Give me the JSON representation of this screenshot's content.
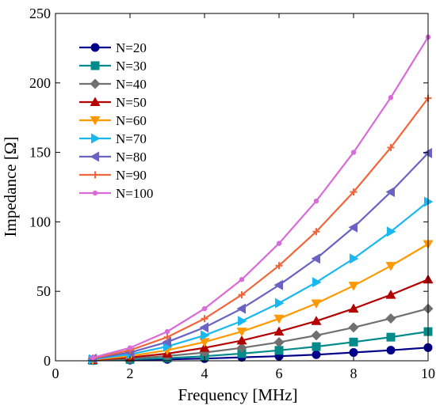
{
  "chart_data": {
    "type": "line",
    "title": "",
    "xlabel": "Frequency [MHz]",
    "ylabel": "Impedance [Ω]",
    "xlim": [
      0,
      10
    ],
    "ylim": [
      0,
      250
    ],
    "x_ticks": [
      "0",
      "2",
      "4",
      "6",
      "8",
      "10"
    ],
    "y_ticks": [
      "0",
      "50",
      "100",
      "150",
      "200",
      "250"
    ],
    "grid": false,
    "legend_position": "top-left",
    "x": [
      1,
      2,
      3,
      4,
      5,
      6,
      7,
      8,
      9,
      10
    ],
    "series": [
      {
        "name": "N=20",
        "color": "#00008b",
        "marker": "circle",
        "values": [
          0.3,
          0.5,
          1.0,
          1.6,
          2.5,
          3.3,
          4.4,
          6.0,
          7.6,
          9.5
        ]
      },
      {
        "name": "N=30",
        "color": "#008b8b",
        "marker": "square",
        "values": [
          0.3,
          1.0,
          1.9,
          3.3,
          5.2,
          7.5,
          10.2,
          13.5,
          17.0,
          21.0
        ]
      },
      {
        "name": "N=40",
        "color": "#707070",
        "marker": "diamond",
        "values": [
          0.4,
          1.6,
          3.4,
          5.9,
          9.3,
          13.3,
          18.3,
          24.0,
          30.5,
          37.5
        ]
      },
      {
        "name": "N=50",
        "color": "#b30000",
        "marker": "triangle-up",
        "values": [
          0.6,
          2.4,
          5.2,
          9.3,
          14.6,
          21.0,
          28.6,
          37.5,
          47.5,
          58.5
        ]
      },
      {
        "name": "N=60",
        "color": "#ff9900",
        "marker": "triangle-down",
        "values": [
          0.8,
          3.4,
          7.6,
          13.5,
          21.0,
          30.3,
          41.3,
          54.0,
          68.3,
          84.0
        ]
      },
      {
        "name": "N=70",
        "color": "#1ab8f0",
        "marker": "triangle-right",
        "values": [
          1.1,
          4.6,
          10.3,
          18.3,
          28.6,
          41.5,
          56.5,
          73.5,
          93.0,
          114.5
        ]
      },
      {
        "name": "N=80",
        "color": "#6b63c4",
        "marker": "triangle-left",
        "values": [
          1.5,
          6.0,
          13.5,
          24.0,
          37.5,
          54.5,
          73.5,
          96.0,
          121.5,
          149.5
        ]
      },
      {
        "name": "N=90",
        "color": "#f0663c",
        "marker": "plus",
        "values": [
          1.9,
          7.6,
          17.0,
          30.3,
          47.5,
          68.5,
          93.0,
          121.5,
          153.5,
          189.0
        ]
      },
      {
        "name": "N=100",
        "color": "#d96bd9",
        "marker": "dot",
        "values": [
          2.3,
          9.3,
          21.0,
          37.5,
          58.5,
          84.5,
          115.0,
          150.0,
          189.5,
          233.0
        ]
      }
    ]
  }
}
